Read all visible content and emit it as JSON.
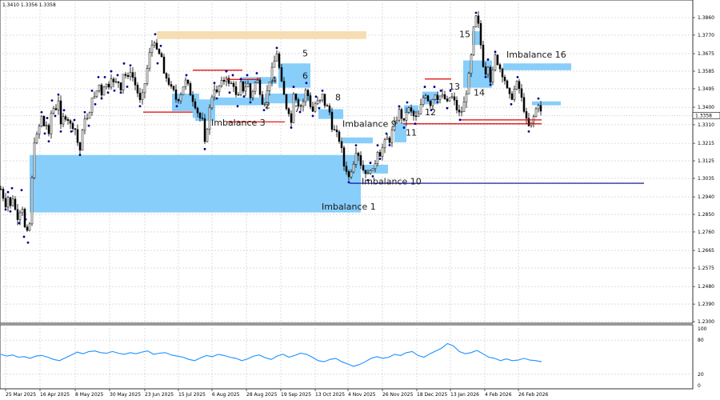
{
  "header": {
    "ohlc_text": "1.3410 1.3356 1.3358"
  },
  "colors": {
    "imbalance_fill": "#87cefa",
    "supply_zone": "#f5deb3",
    "level_red": "#e00000",
    "level_navy": "#00008b",
    "candle": "#000000",
    "swing_marker": "#00008b",
    "indicator_line": "#1e90ff",
    "grid": "#c8c8c8",
    "price_box": "#ffffff"
  },
  "chart_data": [
    {
      "type": "line",
      "chart_kind": "candlestick-with-zones",
      "grid": true,
      "ylim": [
        1.226,
        1.3905
      ],
      "y_ticks": [
        "1.3860",
        "1.3770",
        "1.3675",
        "1.3585",
        "1.3495",
        "1.3400",
        "1.3310",
        "1.3215",
        "1.3125",
        "1.3035",
        "1.2940",
        "1.2850",
        "1.2760",
        "1.2665",
        "1.2575",
        "1.2480",
        "1.2390",
        "1.2300"
      ],
      "current_price": "1.3358",
      "x_labels": [
        "25 Mar 2025",
        "16 Apr 2025",
        "8 May 2025",
        "30 May 2025",
        "23 Jun 2025",
        "15 Jul 2025",
        "6 Aug 2025",
        "28 Aug 2025",
        "19 Sep 2025",
        "13 Oct 2025",
        "4 Nov 2025",
        "26 Nov 2025",
        "18 Dec 2025",
        "13 Jan 2026",
        "4 Feb 2026",
        "26 Feb 2026"
      ],
      "close_path": [
        [
          0,
          1.298
        ],
        [
          3,
          1.294
        ],
        [
          6,
          1.29
        ],
        [
          9,
          1.294
        ],
        [
          12,
          1.289
        ],
        [
          14,
          1.296
        ],
        [
          17,
          1.289
        ],
        [
          20,
          1.284
        ],
        [
          23,
          1.283
        ],
        [
          26,
          1.295
        ],
        [
          29,
          1.276
        ],
        [
          31,
          1.28
        ],
        [
          34,
          1.273
        ],
        [
          36,
          1.28
        ],
        [
          38,
          1.296
        ],
        [
          40,
          1.31
        ],
        [
          42,
          1.323
        ],
        [
          45,
          1.325
        ],
        [
          48,
          1.33
        ],
        [
          51,
          1.335
        ],
        [
          55,
          1.329
        ],
        [
          58,
          1.332
        ],
        [
          60,
          1.325
        ],
        [
          64,
          1.341
        ],
        [
          68,
          1.338
        ],
        [
          72,
          1.344
        ],
        [
          75,
          1.33
        ],
        [
          79,
          1.336
        ],
        [
          84,
          1.334
        ],
        [
          88,
          1.33
        ],
        [
          92,
          1.331
        ],
        [
          96,
          1.322
        ],
        [
          99,
          1.318
        ],
        [
          102,
          1.327
        ],
        [
          105,
          1.335
        ],
        [
          110,
          1.333
        ],
        [
          114,
          1.346
        ],
        [
          118,
          1.344
        ],
        [
          122,
          1.353
        ],
        [
          126,
          1.347
        ],
        [
          130,
          1.353
        ],
        [
          134,
          1.35
        ],
        [
          138,
          1.356
        ],
        [
          142,
          1.351
        ],
        [
          146,
          1.354
        ],
        [
          150,
          1.35
        ],
        [
          154,
          1.36
        ],
        [
          158,
          1.353
        ],
        [
          162,
          1.359
        ],
        [
          166,
          1.354
        ],
        [
          170,
          1.349
        ],
        [
          174,
          1.343
        ],
        [
          178,
          1.347
        ],
        [
          181,
          1.355
        ],
        [
          184,
          1.362
        ],
        [
          187,
          1.37
        ],
        [
          190,
          1.373
        ],
        [
          193,
          1.375
        ],
        [
          196,
          1.365
        ],
        [
          200,
          1.369
        ],
        [
          204,
          1.356
        ],
        [
          208,
          1.355
        ],
        [
          212,
          1.35
        ],
        [
          216,
          1.348
        ],
        [
          220,
          1.343
        ],
        [
          224,
          1.346
        ],
        [
          228,
          1.351
        ],
        [
          232,
          1.354
        ],
        [
          236,
          1.348
        ],
        [
          240,
          1.344
        ],
        [
          244,
          1.34
        ],
        [
          248,
          1.335
        ],
        [
          252,
          1.333
        ],
        [
          255,
          1.321
        ],
        [
          258,
          1.33
        ],
        [
          261,
          1.339
        ],
        [
          264,
          1.346
        ],
        [
          267,
          1.35
        ],
        [
          270,
          1.347
        ],
        [
          274,
          1.352
        ],
        [
          278,
          1.353
        ],
        [
          282,
          1.356
        ],
        [
          286,
          1.35
        ],
        [
          290,
          1.354
        ],
        [
          293,
          1.347
        ],
        [
          296,
          1.343
        ],
        [
          300,
          1.352
        ],
        [
          304,
          1.348
        ],
        [
          308,
          1.354
        ],
        [
          312,
          1.345
        ],
        [
          316,
          1.35
        ],
        [
          320,
          1.355
        ],
        [
          323,
          1.35
        ],
        [
          326,
          1.344
        ],
        [
          329,
          1.341
        ],
        [
          333,
          1.348
        ],
        [
          337,
          1.356
        ],
        [
          341,
          1.362
        ],
        [
          345,
          1.368
        ],
        [
          348,
          1.36
        ],
        [
          351,
          1.352
        ],
        [
          354,
          1.346
        ],
        [
          357,
          1.34
        ],
        [
          360,
          1.338
        ],
        [
          363,
          1.332
        ],
        [
          366,
          1.348
        ],
        [
          370,
          1.344
        ],
        [
          374,
          1.34
        ],
        [
          378,
          1.343
        ],
        [
          382,
          1.35
        ],
        [
          386,
          1.342
        ],
        [
          390,
          1.338
        ],
        [
          394,
          1.343
        ],
        [
          398,
          1.342
        ],
        [
          402,
          1.346
        ],
        [
          406,
          1.34
        ],
        [
          410,
          1.34
        ],
        [
          414,
          1.33
        ],
        [
          418,
          1.327
        ],
        [
          422,
          1.325
        ],
        [
          426,
          1.318
        ],
        [
          429,
          1.31
        ],
        [
          432,
          1.308
        ],
        [
          435,
          1.304
        ],
        [
          438,
          1.308
        ],
        [
          441,
          1.312
        ],
        [
          444,
          1.318
        ],
        [
          447,
          1.316
        ],
        [
          450,
          1.311
        ],
        [
          453,
          1.308
        ],
        [
          456,
          1.307
        ],
        [
          459,
          1.305
        ],
        [
          462,
          1.309
        ],
        [
          465,
          1.307
        ],
        [
          468,
          1.312
        ],
        [
          471,
          1.318
        ],
        [
          474,
          1.316
        ],
        [
          478,
          1.32
        ],
        [
          482,
          1.324
        ],
        [
          486,
          1.323
        ],
        [
          490,
          1.329
        ],
        [
          494,
          1.333
        ],
        [
          498,
          1.338
        ],
        [
          501,
          1.335
        ],
        [
          504,
          1.332
        ],
        [
          508,
          1.34
        ],
        [
          512,
          1.338
        ],
        [
          515,
          1.336
        ],
        [
          518,
          1.334
        ],
        [
          522,
          1.336
        ],
        [
          526,
          1.342
        ],
        [
          530,
          1.348
        ],
        [
          534,
          1.344
        ],
        [
          538,
          1.341
        ],
        [
          542,
          1.348
        ],
        [
          546,
          1.345
        ],
        [
          550,
          1.346
        ],
        [
          554,
          1.345
        ],
        [
          558,
          1.342
        ],
        [
          562,
          1.346
        ],
        [
          566,
          1.344
        ],
        [
          570,
          1.339
        ],
        [
          574,
          1.336
        ],
        [
          578,
          1.34
        ],
        [
          582,
          1.348
        ],
        [
          585,
          1.356
        ],
        [
          588,
          1.366
        ],
        [
          591,
          1.38
        ],
        [
          594,
          1.386
        ],
        [
          597,
          1.382
        ],
        [
          600,
          1.372
        ],
        [
          603,
          1.362
        ],
        [
          606,
          1.358
        ],
        [
          609,
          1.362
        ],
        [
          612,
          1.354
        ],
        [
          615,
          1.358
        ],
        [
          618,
          1.366
        ],
        [
          622,
          1.362
        ],
        [
          626,
          1.358
        ],
        [
          630,
          1.354
        ],
        [
          634,
          1.347
        ],
        [
          638,
          1.344
        ],
        [
          642,
          1.349
        ],
        [
          646,
          1.353
        ],
        [
          650,
          1.346
        ],
        [
          654,
          1.339
        ],
        [
          657,
          1.333
        ],
        [
          660,
          1.33
        ],
        [
          664,
          1.332
        ],
        [
          668,
          1.338
        ],
        [
          672,
          1.342
        ],
        [
          676,
          1.3358
        ]
      ],
      "imbalance_zones": [
        {
          "label": "Imbalance 1",
          "x1": 36,
          "x2": 450,
          "y_top": 1.3155,
          "y_bottom": 1.286
        },
        {
          "label": "2",
          "x1": 262,
          "x2": 330,
          "y_top": 1.345,
          "y_bottom": 1.341
        },
        {
          "label": "Imbalance 3",
          "x1": 243,
          "x2": 268,
          "y_top": 1.344,
          "y_bottom": 1.333
        },
        {
          "label": "4",
          "x1": 300,
          "x2": 345,
          "y_top": 1.3555,
          "y_bottom": 1.352
        },
        {
          "label": "5",
          "x1": 347,
          "x2": 387,
          "y_top": 1.3625,
          "y_bottom": 1.35
        },
        {
          "label": "6",
          "x1": 349,
          "x2": 388,
          "y_top": 1.347,
          "y_bottom": 1.343
        },
        {
          "label": "7",
          "x1": 330,
          "x2": 372,
          "y_top": 1.347,
          "y_bottom": 1.342
        },
        {
          "label": "8",
          "x1": 397,
          "x2": 428,
          "y_top": 1.339,
          "y_bottom": 1.334
        },
        {
          "label": "Imbalance 9",
          "x1": 427,
          "x2": 465,
          "y_top": 1.3245,
          "y_bottom": 1.3215
        },
        {
          "label": "Imbalance 10",
          "x1": 452,
          "x2": 484,
          "y_top": 1.3105,
          "y_bottom": 1.306
        },
        {
          "label": "11",
          "x1": 492,
          "x2": 507,
          "y_top": 1.332,
          "y_bottom": 1.322
        },
        {
          "label": "12",
          "x1": 504,
          "x2": 522,
          "y_top": 1.341,
          "y_bottom": 1.337
        },
        {
          "label": "13",
          "x1": 527,
          "x2": 547,
          "y_top": 1.348,
          "y_bottom": 1.3415
        },
        {
          "label": "14",
          "x1": 578,
          "x2": 614,
          "y_top": 1.364,
          "y_bottom": 1.35
        },
        {
          "label": "15",
          "x1": 589,
          "x2": 600,
          "y_top": 1.379,
          "y_bottom": 1.372
        },
        {
          "label": "Imbalance 16",
          "x1": 628,
          "x2": 713,
          "y_top": 1.3625,
          "y_bottom": 1.359
        },
        {
          "label": "",
          "x1": 240,
          "x2": 262,
          "y_top": 1.3425,
          "y_bottom": 1.3345
        },
        {
          "label": "",
          "x1": 214,
          "x2": 248,
          "y_top": 1.347,
          "y_bottom": 1.338
        },
        {
          "label": "",
          "x1": 664,
          "x2": 700,
          "y_top": 1.343,
          "y_bottom": 1.341
        }
      ],
      "supply_zone": {
        "x1": 195,
        "x2": 457,
        "y_top": 1.379,
        "y_bottom": 1.375
      },
      "levels": [
        {
          "color": "red",
          "x1": 178,
          "x2": 240,
          "y": 1.3375
        },
        {
          "color": "red",
          "x1": 240,
          "x2": 302,
          "y": 1.359
        },
        {
          "color": "red",
          "x1": 282,
          "x2": 325,
          "y": 1.3543
        },
        {
          "color": "red",
          "x1": 283,
          "x2": 355,
          "y": 1.3325
        },
        {
          "color": "red",
          "x1": 530,
          "x2": 563,
          "y": 1.3545
        },
        {
          "color": "red",
          "x1": 503,
          "x2": 676,
          "y": 1.3315
        },
        {
          "color": "red",
          "x1": 573,
          "x2": 676,
          "y": 1.3335
        },
        {
          "color": "navy",
          "x1": 436,
          "x2": 804,
          "y": 1.301
        }
      ],
      "rsi": {
        "levels": [
          100,
          80,
          20,
          0
        ],
        "values": [
          55,
          52,
          54,
          50,
          51,
          48,
          52,
          53,
          50,
          46,
          44,
          49,
          54,
          59,
          56,
          60,
          61,
          58,
          57,
          60,
          57,
          55,
          58,
          56,
          59,
          61,
          55,
          57,
          58,
          54,
          52,
          50,
          46,
          44,
          49,
          53,
          51,
          55,
          53,
          50,
          48,
          44,
          47,
          52,
          54,
          49,
          46,
          52,
          55,
          50,
          53,
          57,
          55,
          50,
          44,
          42,
          46,
          48,
          42,
          38,
          34,
          37,
          42,
          48,
          51,
          48,
          50,
          55,
          53,
          58,
          60,
          53,
          50,
          56,
          61,
          66,
          74,
          70,
          60,
          56,
          58,
          62,
          56,
          50,
          48,
          44,
          47,
          44,
          45,
          48,
          45,
          44,
          42
        ]
      }
    }
  ]
}
